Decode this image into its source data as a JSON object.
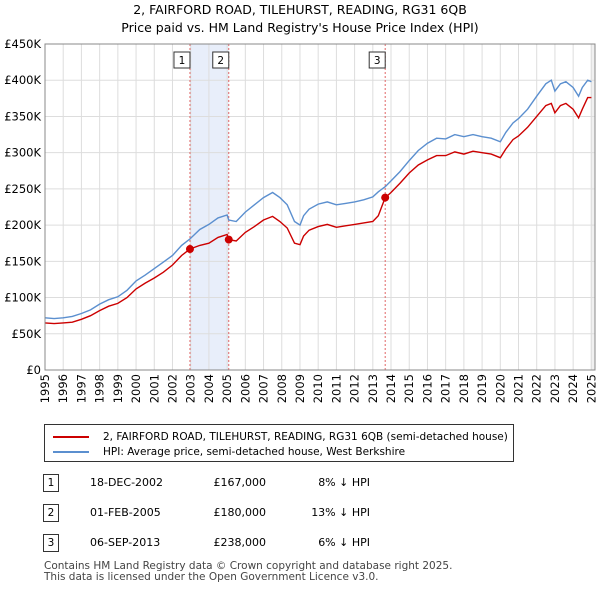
{
  "chart_data": {
    "type": "line",
    "title": "2, FAIRFORD ROAD, TILEHURST, READING, RG31 6QB",
    "subtitle": "Price paid vs. HM Land Registry's House Price Index (HPI)",
    "xlim": [
      1995,
      2025.2
    ],
    "ylim": [
      0,
      450000
    ],
    "x_ticks": [
      "1995",
      "1996",
      "1997",
      "1998",
      "1999",
      "2000",
      "2001",
      "2002",
      "2003",
      "2004",
      "2005",
      "2006",
      "2007",
      "2008",
      "2009",
      "2010",
      "2011",
      "2012",
      "2013",
      "2014",
      "2015",
      "2016",
      "2017",
      "2018",
      "2019",
      "2020",
      "2021",
      "2022",
      "2023",
      "2024",
      "2025"
    ],
    "y_ticks": [
      {
        "value": 0,
        "label": "£0"
      },
      {
        "value": 50000,
        "label": "£50K"
      },
      {
        "value": 100000,
        "label": "£100K"
      },
      {
        "value": 150000,
        "label": "£150K"
      },
      {
        "value": 200000,
        "label": "£200K"
      },
      {
        "value": 250000,
        "label": "£250K"
      },
      {
        "value": 300000,
        "label": "£300K"
      },
      {
        "value": 350000,
        "label": "£350K"
      },
      {
        "value": 400000,
        "label": "£400K"
      },
      {
        "value": 450000,
        "label": "£450K"
      }
    ],
    "grid": true,
    "shaded_periods": [
      [
        2002.96,
        2005.09
      ]
    ],
    "series": [
      {
        "name": "2, FAIRFORD ROAD, TILEHURST, READING, RG31 6QB (semi-detached house)",
        "color": "#cc0000",
        "x": [
          1995.0,
          1995.5,
          1996.0,
          1996.5,
          1997.0,
          1997.5,
          1998.0,
          1998.5,
          1999.0,
          1999.5,
          2000.0,
          2000.5,
          2001.0,
          2001.5,
          2002.0,
          2002.5,
          2002.96,
          2003.5,
          2004.0,
          2004.5,
          2005.0,
          2005.09,
          2005.5,
          2006.0,
          2006.5,
          2007.0,
          2007.5,
          2007.9,
          2008.3,
          2008.7,
          2009.0,
          2009.2,
          2009.5,
          2010.0,
          2010.5,
          2011.0,
          2011.5,
          2012.0,
          2012.5,
          2013.0,
          2013.3,
          2013.68,
          2014.0,
          2014.5,
          2015.0,
          2015.5,
          2016.0,
          2016.5,
          2017.0,
          2017.5,
          2018.0,
          2018.5,
          2019.0,
          2019.5,
          2020.0,
          2020.3,
          2020.7,
          2021.0,
          2021.5,
          2022.0,
          2022.5,
          2022.8,
          2023.0,
          2023.3,
          2023.6,
          2024.0,
          2024.3,
          2024.5,
          2024.8,
          2025.0
        ],
        "y": [
          65000,
          64000,
          65000,
          66000,
          70000,
          75000,
          82000,
          88000,
          92000,
          100000,
          112000,
          120000,
          127000,
          135000,
          145000,
          158000,
          167000,
          172000,
          175000,
          183000,
          187000,
          180000,
          178000,
          190000,
          198000,
          207000,
          212000,
          205000,
          196000,
          175000,
          173000,
          185000,
          193000,
          198000,
          201000,
          197000,
          199000,
          201000,
          203000,
          205000,
          213000,
          238000,
          245000,
          258000,
          272000,
          283000,
          290000,
          296000,
          296000,
          301000,
          298000,
          302000,
          300000,
          298000,
          293000,
          305000,
          318000,
          323000,
          335000,
          350000,
          365000,
          368000,
          355000,
          365000,
          368000,
          360000,
          348000,
          360000,
          376000,
          376000
        ]
      },
      {
        "name": "HPI: Average price, semi-detached house, West Berkshire",
        "color": "#5b8fcf",
        "x": [
          1995.0,
          1995.5,
          1996.0,
          1996.5,
          1997.0,
          1997.5,
          1998.0,
          1998.5,
          1999.0,
          1999.5,
          2000.0,
          2000.5,
          2001.0,
          2001.5,
          2002.0,
          2002.5,
          2002.96,
          2003.5,
          2004.0,
          2004.5,
          2005.0,
          2005.09,
          2005.5,
          2006.0,
          2006.5,
          2007.0,
          2007.5,
          2007.9,
          2008.3,
          2008.7,
          2009.0,
          2009.2,
          2009.5,
          2010.0,
          2010.5,
          2011.0,
          2011.5,
          2012.0,
          2012.5,
          2013.0,
          2013.3,
          2013.68,
          2014.0,
          2014.5,
          2015.0,
          2015.5,
          2016.0,
          2016.5,
          2017.0,
          2017.5,
          2018.0,
          2018.5,
          2019.0,
          2019.5,
          2020.0,
          2020.3,
          2020.7,
          2021.0,
          2021.5,
          2022.0,
          2022.5,
          2022.8,
          2023.0,
          2023.3,
          2023.6,
          2024.0,
          2024.3,
          2024.5,
          2024.8,
          2025.0
        ],
        "y": [
          72000,
          71000,
          72000,
          74000,
          78000,
          83000,
          91000,
          97000,
          101000,
          110000,
          123000,
          131000,
          140000,
          149000,
          158000,
          172000,
          181000,
          194000,
          201000,
          210000,
          214000,
          207000,
          205000,
          218000,
          228000,
          238000,
          245000,
          238000,
          228000,
          205000,
          200000,
          213000,
          222000,
          229000,
          232000,
          228000,
          230000,
          232000,
          235000,
          239000,
          246000,
          253000,
          261000,
          274000,
          289000,
          303000,
          313000,
          320000,
          319000,
          325000,
          322000,
          325000,
          322000,
          320000,
          315000,
          328000,
          341000,
          347000,
          360000,
          378000,
          395000,
          400000,
          385000,
          395000,
          398000,
          390000,
          378000,
          390000,
          400000,
          398000
        ]
      }
    ],
    "sales": [
      {
        "num": "1",
        "x": 2002.96,
        "y": 167000
      },
      {
        "num": "2",
        "x": 2005.09,
        "y": 180000
      },
      {
        "num": "3",
        "x": 2013.68,
        "y": 238000
      }
    ]
  },
  "legend": {
    "property_label": "2, FAIRFORD ROAD, TILEHURST, READING, RG31 6QB (semi-detached house)",
    "hpi_label": "HPI: Average price, semi-detached house, West Berkshire"
  },
  "sales_table": [
    {
      "num": "1",
      "date": "18-DEC-2002",
      "price": "£167,000",
      "hpi": "8% ↓ HPI"
    },
    {
      "num": "2",
      "date": "01-FEB-2005",
      "price": "£180,000",
      "hpi": "13% ↓ HPI"
    },
    {
      "num": "3",
      "date": "06-SEP-2013",
      "price": "£238,000",
      "hpi": "6% ↓ HPI"
    }
  ],
  "footer": {
    "line1": "Contains HM Land Registry data © Crown copyright and database right 2025.",
    "line2": "This data is licensed under the Open Government Licence v3.0."
  },
  "colors": {
    "property": "#cc0000",
    "hpi": "#5b8fcf",
    "shade": "#e8eefa",
    "grid": "#dddddd"
  }
}
